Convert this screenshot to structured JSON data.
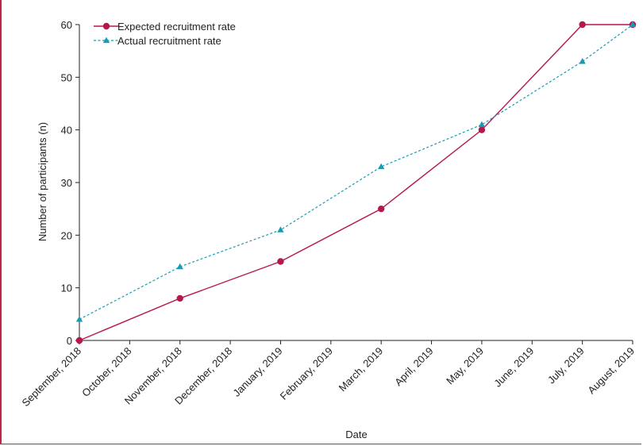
{
  "chart_data": {
    "type": "line",
    "title": "",
    "xlabel": "Date",
    "ylabel": "Number of participants (n)",
    "categories": [
      "September, 2018",
      "October, 2018",
      "November, 2018",
      "December, 2018",
      "January, 2019",
      "February, 2019",
      "March, 2019",
      "April, 2019",
      "May, 2019",
      "June, 2019",
      "July, 2019",
      "August, 2019"
    ],
    "ylim": [
      0,
      60
    ],
    "yticks": [
      0,
      10,
      20,
      30,
      40,
      50,
      60
    ],
    "grid": false,
    "legend_position": "top-left",
    "series": [
      {
        "name": "Expected recruitment rate",
        "color": "#b5174f",
        "style": "solid",
        "marker": "circle",
        "points": [
          {
            "x": "September, 2018",
            "y": 0
          },
          {
            "x": "November, 2018",
            "y": 8
          },
          {
            "x": "January, 2019",
            "y": 15
          },
          {
            "x": "March, 2019",
            "y": 25
          },
          {
            "x": "May, 2019",
            "y": 40
          },
          {
            "x": "July, 2019",
            "y": 60
          },
          {
            "x": "August, 2019",
            "y": 60
          }
        ]
      },
      {
        "name": "Actual recruitment rate",
        "color": "#1a9bb5",
        "style": "dashed",
        "marker": "triangle",
        "points": [
          {
            "x": "September, 2018",
            "y": 4
          },
          {
            "x": "November, 2018",
            "y": 14
          },
          {
            "x": "January, 2019",
            "y": 21
          },
          {
            "x": "March, 2019",
            "y": 33
          },
          {
            "x": "May, 2019",
            "y": 41
          },
          {
            "x": "July, 2019",
            "y": 53
          },
          {
            "x": "August, 2019",
            "y": 60
          }
        ]
      }
    ]
  }
}
